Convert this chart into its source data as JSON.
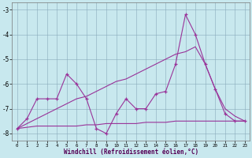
{
  "xlabel": "Windchill (Refroidissement éolien,°C)",
  "bg_color": "#c8e8ee",
  "line_color": "#993399",
  "grid_color": "#88aabb",
  "xlim_min": 0,
  "xlim_max": 23,
  "ylim_min": -8.3,
  "ylim_max": -2.7,
  "yticks": [
    -8,
    -7,
    -6,
    -5,
    -4,
    -3
  ],
  "xticks": [
    0,
    1,
    2,
    3,
    4,
    5,
    6,
    7,
    8,
    9,
    10,
    11,
    12,
    13,
    14,
    15,
    16,
    17,
    18,
    19,
    20,
    21,
    22,
    23
  ],
  "line1_x": [
    0,
    1,
    2,
    3,
    4,
    5,
    6,
    7,
    8,
    9,
    10,
    11,
    12,
    13,
    14,
    15,
    16,
    17,
    18,
    19,
    20,
    21,
    22,
    23
  ],
  "line1_y": [
    -7.8,
    -7.4,
    -6.6,
    -6.6,
    -6.6,
    -5.6,
    -6.0,
    -6.6,
    -7.8,
    -8.0,
    -7.2,
    -6.6,
    -7.0,
    -7.0,
    -6.4,
    -6.3,
    -5.2,
    -3.2,
    -4.0,
    -5.2,
    -6.2,
    -7.2,
    -7.5,
    -7.5
  ],
  "line2_x": [
    0,
    1,
    2,
    3,
    4,
    5,
    6,
    7,
    8,
    9,
    10,
    11,
    12,
    13,
    14,
    15,
    16,
    17,
    18,
    19,
    20,
    21,
    22,
    23
  ],
  "line2_y": [
    -7.8,
    -7.6,
    -7.4,
    -7.2,
    -7.0,
    -6.8,
    -6.6,
    -6.5,
    -6.3,
    -6.1,
    -5.9,
    -5.8,
    -5.6,
    -5.4,
    -5.2,
    -5.0,
    -4.8,
    -4.7,
    -4.5,
    -5.2,
    -6.2,
    -7.0,
    -7.3,
    -7.5
  ],
  "line3_x": [
    0,
    1,
    2,
    3,
    4,
    5,
    6,
    7,
    8,
    9,
    10,
    11,
    12,
    13,
    14,
    15,
    16,
    17,
    18,
    19,
    20,
    21,
    22,
    23
  ],
  "line3_y": [
    -7.8,
    -7.75,
    -7.7,
    -7.7,
    -7.7,
    -7.7,
    -7.7,
    -7.65,
    -7.65,
    -7.6,
    -7.6,
    -7.6,
    -7.6,
    -7.55,
    -7.55,
    -7.55,
    -7.5,
    -7.5,
    -7.5,
    -7.5,
    -7.5,
    -7.5,
    -7.5,
    -7.5
  ]
}
